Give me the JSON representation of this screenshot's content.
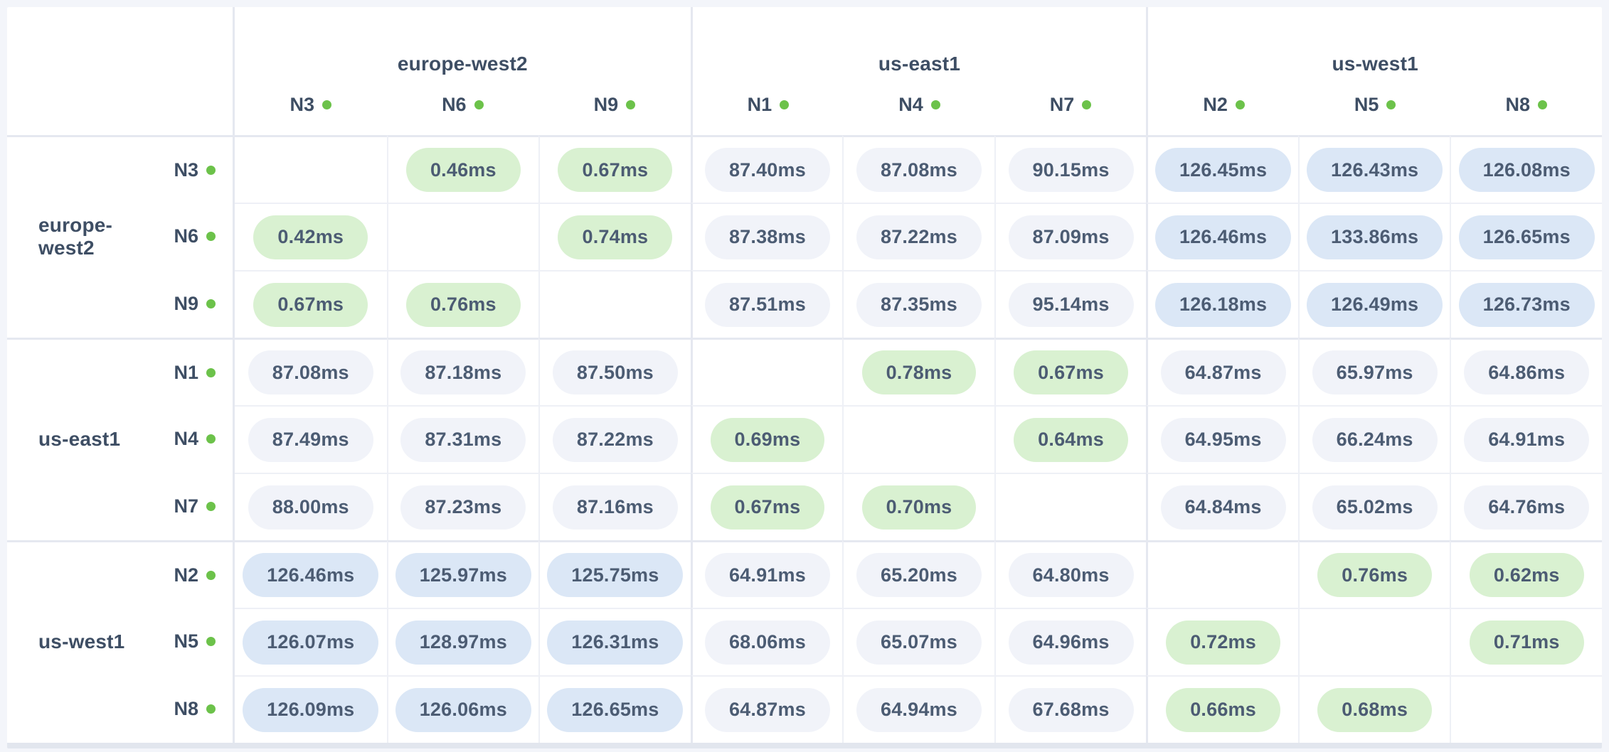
{
  "palette": {
    "page_bg": "#f3f5fa",
    "table_bg": "#ffffff",
    "grid_line": "#eef0f6",
    "group_line": "#e5e8f0",
    "bottom_band": "#e2e6ee",
    "pill_low_bg": "#d9f1d1",
    "pill_mid_bg": "#f1f3f9",
    "pill_high_bg": "#dbe7f6",
    "label_text": "#3e4e64",
    "cell_text": "#4c5c73",
    "liveness_dot": "#6cc24a"
  },
  "matrix": {
    "unit": "ms",
    "regions": [
      {
        "name": "europe-west2",
        "nodes": [
          "N3",
          "N6",
          "N9"
        ]
      },
      {
        "name": "us-east1",
        "nodes": [
          "N1",
          "N4",
          "N7"
        ]
      },
      {
        "name": "us-west1",
        "nodes": [
          "N2",
          "N5",
          "N8"
        ]
      }
    ],
    "rows": [
      {
        "region": "europe-west2",
        "node": "N3",
        "values": [
          null,
          "0.46ms",
          "0.67ms",
          "87.40ms",
          "87.08ms",
          "90.15ms",
          "126.45ms",
          "126.43ms",
          "126.08ms"
        ]
      },
      {
        "region": "europe-west2",
        "node": "N6",
        "values": [
          "0.42ms",
          null,
          "0.74ms",
          "87.38ms",
          "87.22ms",
          "87.09ms",
          "126.46ms",
          "133.86ms",
          "126.65ms"
        ]
      },
      {
        "region": "europe-west2",
        "node": "N9",
        "values": [
          "0.67ms",
          "0.76ms",
          null,
          "87.51ms",
          "87.35ms",
          "95.14ms",
          "126.18ms",
          "126.49ms",
          "126.73ms"
        ]
      },
      {
        "region": "us-east1",
        "node": "N1",
        "values": [
          "87.08ms",
          "87.18ms",
          "87.50ms",
          null,
          "0.78ms",
          "0.67ms",
          "64.87ms",
          "65.97ms",
          "64.86ms"
        ]
      },
      {
        "region": "us-east1",
        "node": "N4",
        "values": [
          "87.49ms",
          "87.31ms",
          "87.22ms",
          "0.69ms",
          null,
          "0.64ms",
          "64.95ms",
          "66.24ms",
          "64.91ms"
        ]
      },
      {
        "region": "us-east1",
        "node": "N7",
        "values": [
          "88.00ms",
          "87.23ms",
          "87.16ms",
          "0.67ms",
          "0.70ms",
          null,
          "64.84ms",
          "65.02ms",
          "64.76ms"
        ]
      },
      {
        "region": "us-west1",
        "node": "N2",
        "values": [
          "126.46ms",
          "125.97ms",
          "125.75ms",
          "64.91ms",
          "65.20ms",
          "64.80ms",
          null,
          "0.76ms",
          "0.62ms"
        ]
      },
      {
        "region": "us-west1",
        "node": "N5",
        "values": [
          "126.07ms",
          "128.97ms",
          "126.31ms",
          "68.06ms",
          "65.07ms",
          "64.96ms",
          "0.72ms",
          null,
          "0.71ms"
        ]
      },
      {
        "region": "us-west1",
        "node": "N8",
        "values": [
          "126.09ms",
          "126.06ms",
          "126.65ms",
          "64.87ms",
          "64.94ms",
          "67.68ms",
          "0.66ms",
          "0.68ms",
          null
        ]
      }
    ]
  }
}
